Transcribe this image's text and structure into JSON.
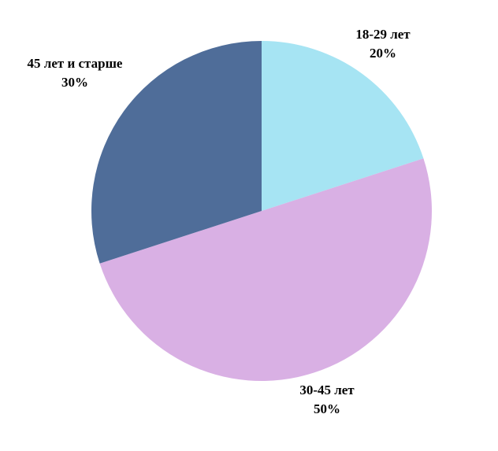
{
  "chart_data": {
    "type": "pie",
    "categories": [
      "18-29 лет",
      "30-45 лет",
      "45 лет и старше"
    ],
    "values": [
      20,
      50,
      30
    ],
    "value_labels": [
      "20%",
      "50%",
      "30%"
    ],
    "colors": [
      "#a6e4f3",
      "#d9b0e4",
      "#4f6d99"
    ]
  }
}
